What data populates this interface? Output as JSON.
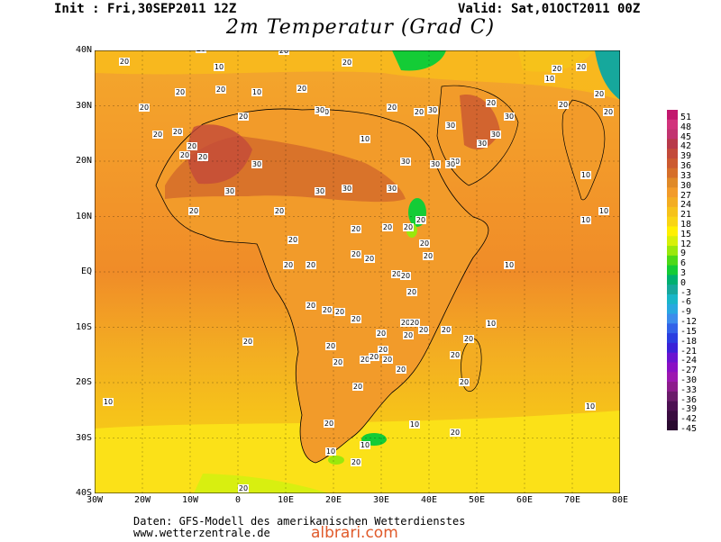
{
  "header": {
    "init": "Init : Fri,30SEP2011 12Z",
    "valid": "Valid: Sat,01OCT2011 00Z",
    "title": "2m Temperatur (Grad C)"
  },
  "map": {
    "lat_labels": [
      "40N",
      "30N",
      "20N",
      "10N",
      "EQ",
      "10S",
      "20S",
      "30S",
      "40S"
    ],
    "lon_labels": [
      "30W",
      "20W",
      "10W",
      "0",
      "10E",
      "20E",
      "30E",
      "40E",
      "50E",
      "60E",
      "70E",
      "80E"
    ],
    "contour_labels": [
      "20",
      "20",
      "10",
      "20",
      "20",
      "20",
      "20",
      "20",
      "20",
      "20",
      "20",
      "20",
      "20",
      "10",
      "10",
      "10",
      "20",
      "20",
      "20",
      "20",
      "30",
      "30",
      "30",
      "30",
      "30",
      "30",
      "30",
      "30",
      "30",
      "30",
      "30",
      "30",
      "30",
      "30",
      "30",
      "20",
      "20",
      "20",
      "20",
      "20",
      "20",
      "20",
      "20",
      "20",
      "20",
      "20",
      "20",
      "20",
      "20",
      "20",
      "20",
      "20",
      "20",
      "20",
      "20",
      "20",
      "20",
      "20",
      "20",
      "20",
      "20",
      "20",
      "20",
      "20",
      "20",
      "20",
      "20",
      "20",
      "20",
      "20",
      "20",
      "20",
      "20",
      "20",
      "20",
      "20",
      "10",
      "10",
      "10",
      "10",
      "10",
      "10",
      "10",
      "10",
      "10",
      "10",
      "20",
      "20",
      "20",
      "20",
      "20",
      "20",
      "20",
      "10"
    ]
  },
  "colorbar": {
    "labels": [
      "51",
      "48",
      "45",
      "42",
      "39",
      "36",
      "33",
      "30",
      "27",
      "24",
      "21",
      "18",
      "15",
      "12",
      "9",
      "6",
      "3",
      "0",
      "-3",
      "-6",
      "-9",
      "-12",
      "-15",
      "-18",
      "-21",
      "-24",
      "-27",
      "-30",
      "-33",
      "-36",
      "-39",
      "-42",
      "-45"
    ],
    "colors": [
      "#c2186e",
      "#d2337c",
      "#c23470",
      "#b83a4a",
      "#c34a3a",
      "#cc5a30",
      "#d66f2a",
      "#e08a28",
      "#f29b2a",
      "#f3ad22",
      "#f6c21a",
      "#f9d514",
      "#fff000",
      "#d7f008",
      "#9ae80c",
      "#4cd918",
      "#14cc36",
      "#00b070",
      "#16a89c",
      "#18b6c8",
      "#28a8e0",
      "#3c8cec",
      "#3262e8",
      "#2a3ee0",
      "#3a22d8",
      "#6a14d0",
      "#8a10c4",
      "#9c18b0",
      "#8c1c8c",
      "#6a1c6a",
      "#4c1052",
      "#3a0c40",
      "#2a0a30"
    ]
  },
  "footer": {
    "line1": "Daten: GFS-Modell des amerikanischen Wetterdienstes",
    "line2": "www.wetterzentrale.de",
    "brand": "albrari.com"
  }
}
